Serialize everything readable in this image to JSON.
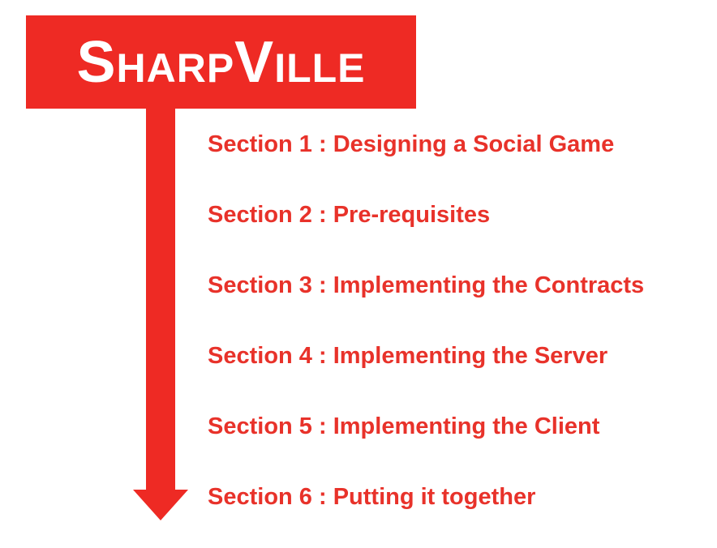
{
  "logo": {
    "text": "SharpVille",
    "background_color": "#ee2a24",
    "text_color": "#ffffff"
  },
  "arrow": {
    "color": "#ee2a24",
    "direction": "down"
  },
  "sections": [
    {
      "label": "Section 1 : Designing a Social Game"
    },
    {
      "label": "Section 2 : Pre-requisites"
    },
    {
      "label": "Section 3 : Implementing the Contracts"
    },
    {
      "label": "Section 4 : Implementing the Server"
    },
    {
      "label": "Section 5 : Implementing the Client"
    },
    {
      "label": "Section 6 : Putting it together"
    }
  ],
  "section_text_color": "#e8322a"
}
